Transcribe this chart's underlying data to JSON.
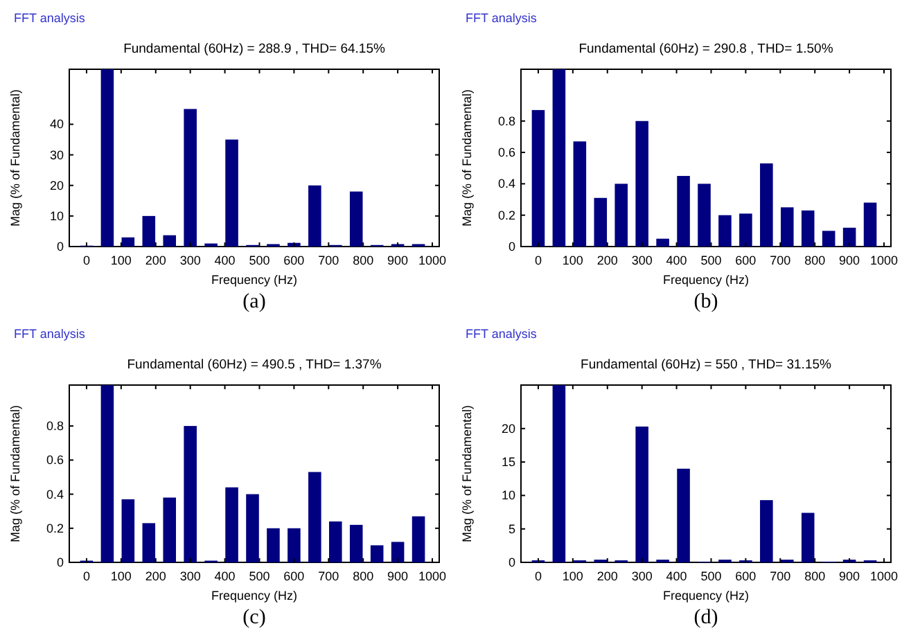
{
  "chart_data": [
    {
      "type": "bar",
      "subtitle": "FFT analysis",
      "title": "Fundamental (60Hz) = 288.9 , THD= 64.15%",
      "xlabel": "Frequency (Hz)",
      "ylabel": "Mag (% of Fundamental)",
      "annotations": [
        "(a)"
      ],
      "color": "#000080",
      "x": [
        0,
        60,
        120,
        180,
        240,
        300,
        360,
        420,
        480,
        540,
        600,
        660,
        720,
        780,
        840,
        900,
        960
      ],
      "values": [
        0.3,
        58,
        3,
        10,
        3.7,
        45,
        1,
        35,
        0.5,
        0.8,
        1.2,
        20,
        0.5,
        18,
        0.5,
        0.8,
        0.8
      ],
      "xlim": [
        -50,
        1020
      ],
      "xticks": [
        0,
        100,
        200,
        300,
        400,
        500,
        600,
        700,
        800,
        900,
        1000
      ],
      "ylim": [
        0,
        58
      ],
      "yticks": [
        0,
        10,
        20,
        30,
        40
      ]
    },
    {
      "type": "bar",
      "subtitle": "FFT analysis",
      "title": "Fundamental (60Hz) = 290.8 , THD= 1.50%",
      "xlabel": "Frequency (Hz)",
      "ylabel": "Mag (% of Fundamental)",
      "annotations": [
        "(b)"
      ],
      "color": "#000080",
      "x": [
        0,
        60,
        120,
        180,
        240,
        300,
        360,
        420,
        480,
        540,
        600,
        660,
        720,
        780,
        840,
        900,
        960
      ],
      "values": [
        0.87,
        1.13,
        0.67,
        0.31,
        0.4,
        0.8,
        0.05,
        0.45,
        0.4,
        0.2,
        0.21,
        0.53,
        0.25,
        0.23,
        0.1,
        0.12,
        0.28
      ],
      "xlim": [
        -50,
        1020
      ],
      "xticks": [
        0,
        100,
        200,
        300,
        400,
        500,
        600,
        700,
        800,
        900,
        1000
      ],
      "ylim": [
        0,
        1.13
      ],
      "yticks": [
        0,
        0.2,
        0.4,
        0.6,
        0.8
      ]
    },
    {
      "type": "bar",
      "subtitle": "FFT analysis",
      "title": "Fundamental (60Hz) = 490.5 , THD= 1.37%",
      "xlabel": "Frequency (Hz)",
      "ylabel": "Mag (% of Fundamental)",
      "annotations": [
        "(c)"
      ],
      "color": "#000080",
      "x": [
        0,
        60,
        120,
        180,
        240,
        300,
        360,
        420,
        480,
        540,
        600,
        660,
        720,
        780,
        840,
        900,
        960
      ],
      "values": [
        0.01,
        1.04,
        0.37,
        0.23,
        0.38,
        0.8,
        0.01,
        0.44,
        0.4,
        0.2,
        0.2,
        0.53,
        0.24,
        0.22,
        0.1,
        0.12,
        0.27
      ],
      "xlim": [
        -50,
        1020
      ],
      "xticks": [
        0,
        100,
        200,
        300,
        400,
        500,
        600,
        700,
        800,
        900,
        1000
      ],
      "ylim": [
        0,
        1.04
      ],
      "yticks": [
        0,
        0.2,
        0.4,
        0.6,
        0.8
      ]
    },
    {
      "type": "bar",
      "subtitle": "FFT analysis",
      "title": "Fundamental (60Hz) = 550 , THD= 31.15%",
      "xlabel": "Frequency (Hz)",
      "ylabel": "Mag (% of Fundamental)",
      "annotations": [
        "(d)"
      ],
      "color": "#000080",
      "x": [
        0,
        60,
        120,
        180,
        240,
        300,
        360,
        420,
        480,
        540,
        600,
        660,
        720,
        780,
        840,
        900,
        960
      ],
      "values": [
        0.3,
        26.5,
        0.3,
        0.4,
        0.3,
        20.3,
        0.4,
        14,
        0.1,
        0.4,
        0.3,
        9.3,
        0.4,
        7.4,
        0.1,
        0.4,
        0.3
      ],
      "xlim": [
        -50,
        1020
      ],
      "xticks": [
        0,
        100,
        200,
        300,
        400,
        500,
        600,
        700,
        800,
        900,
        1000
      ],
      "ylim": [
        0,
        26.5
      ],
      "yticks": [
        0,
        5,
        10,
        15,
        20
      ]
    }
  ]
}
